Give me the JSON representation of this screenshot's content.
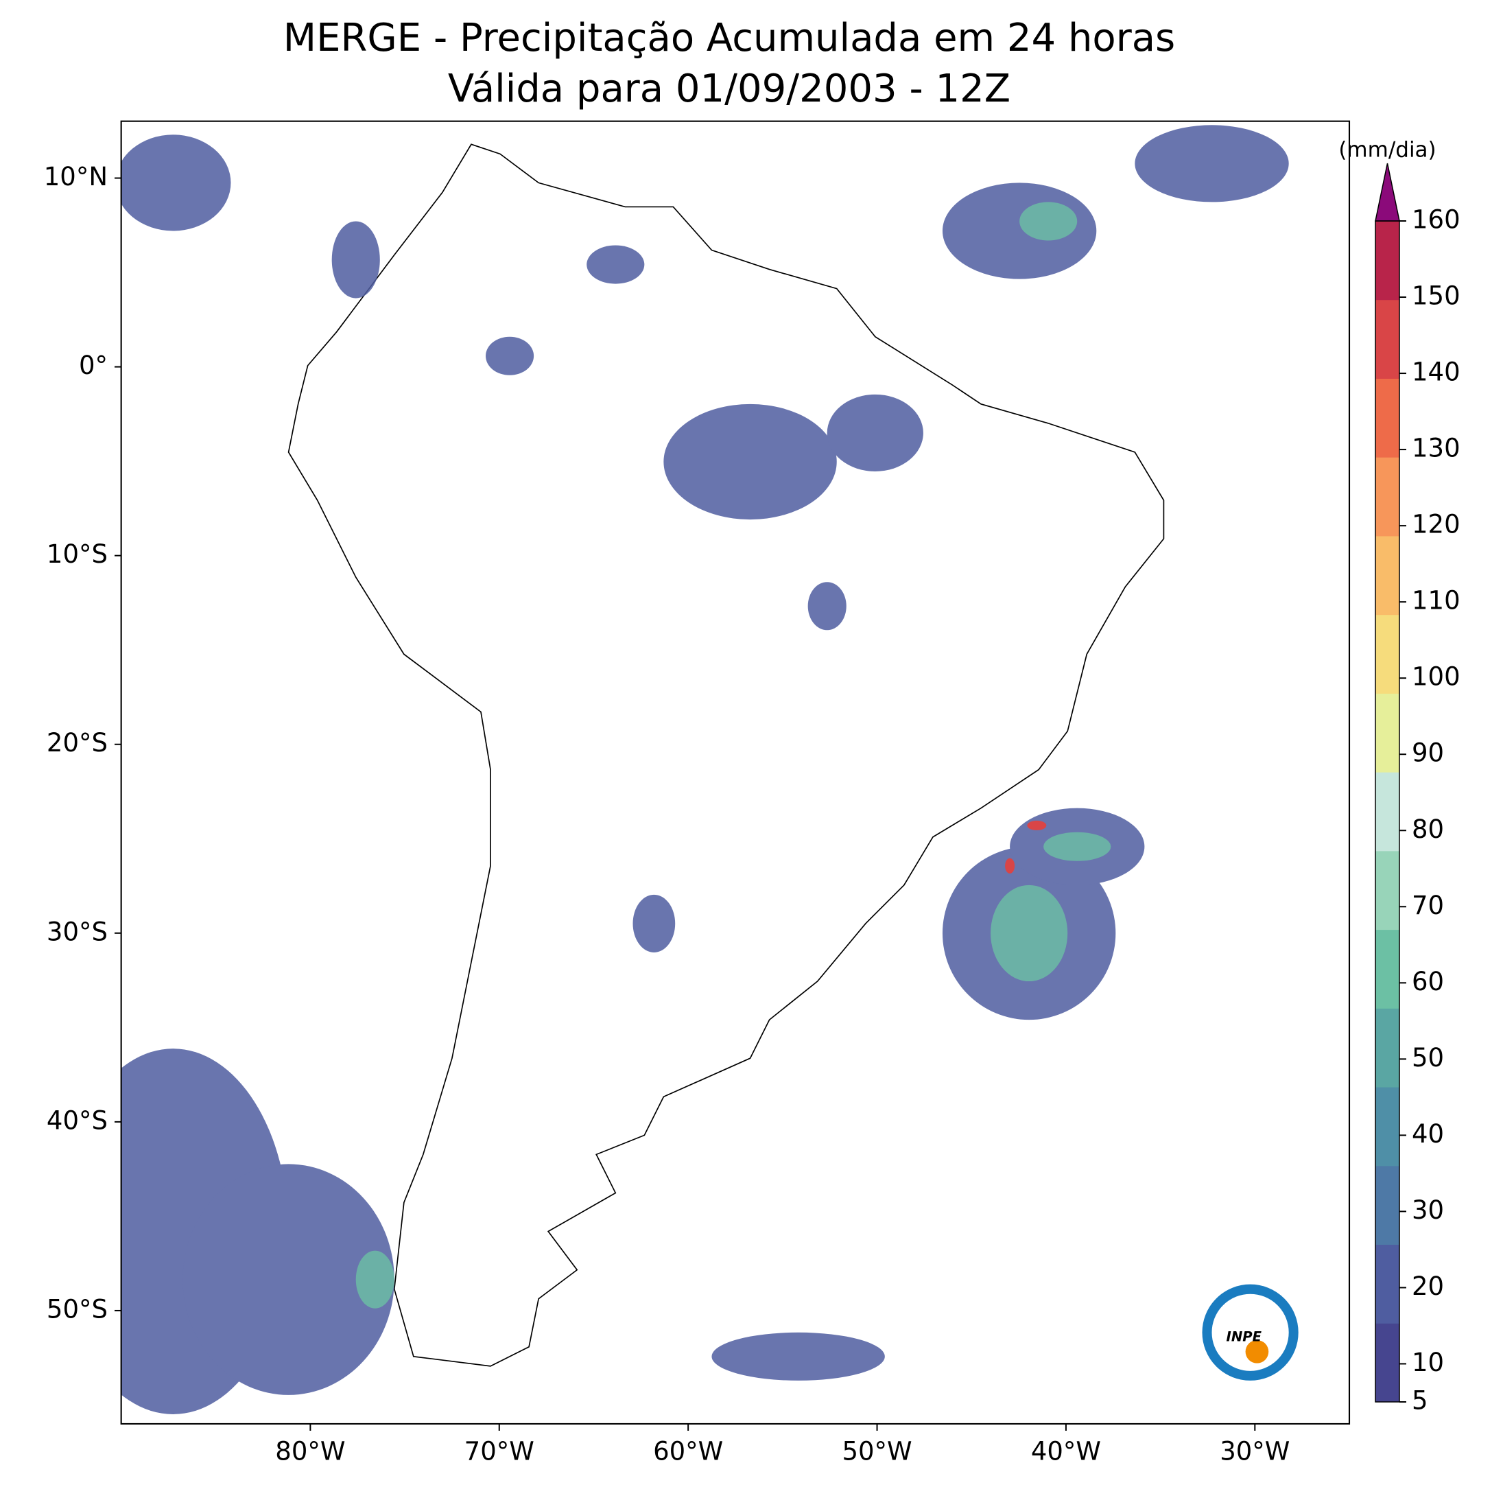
{
  "chart_data": {
    "type": "map",
    "title": "MERGE - Precipitação Acumulada em 24 horas",
    "subtitle": "Válida para 01/09/2003 - 12Z",
    "xlim": [
      -90,
      -25
    ],
    "ylim": [
      -56,
      13
    ],
    "xticks": [
      {
        "value": -80,
        "label": "80°W"
      },
      {
        "value": -70,
        "label": "70°W"
      },
      {
        "value": -60,
        "label": "60°W"
      },
      {
        "value": -50,
        "label": "50°W"
      },
      {
        "value": -40,
        "label": "40°W"
      },
      {
        "value": -30,
        "label": "30°W"
      }
    ],
    "yticks": [
      {
        "value": 10,
        "label": "10°N"
      },
      {
        "value": 0,
        "label": "0°"
      },
      {
        "value": -10,
        "label": "10°S"
      },
      {
        "value": -20,
        "label": "20°S"
      },
      {
        "value": -30,
        "label": "30°S"
      },
      {
        "value": -40,
        "label": "40°S"
      },
      {
        "value": -50,
        "label": "50°S"
      }
    ],
    "colorbar": {
      "label": "(mm/dia)",
      "lim": [
        5,
        160
      ],
      "ticks": [
        5,
        10,
        20,
        30,
        40,
        50,
        60,
        70,
        80,
        90,
        100,
        110,
        120,
        130,
        140,
        150,
        160
      ],
      "colors": [
        "#46458f",
        "#4f5da0",
        "#4e79a6",
        "#4f8fa7",
        "#5aa6a3",
        "#6cc0a4",
        "#98d4b9",
        "#c6e6dc",
        "#e6ef9a",
        "#f6dc7c",
        "#f9bc69",
        "#f7965a",
        "#ee6b49",
        "#d94547",
        "#b8244a"
      ],
      "extend_color": "#8b0a7a"
    },
    "logo": "INPE"
  }
}
